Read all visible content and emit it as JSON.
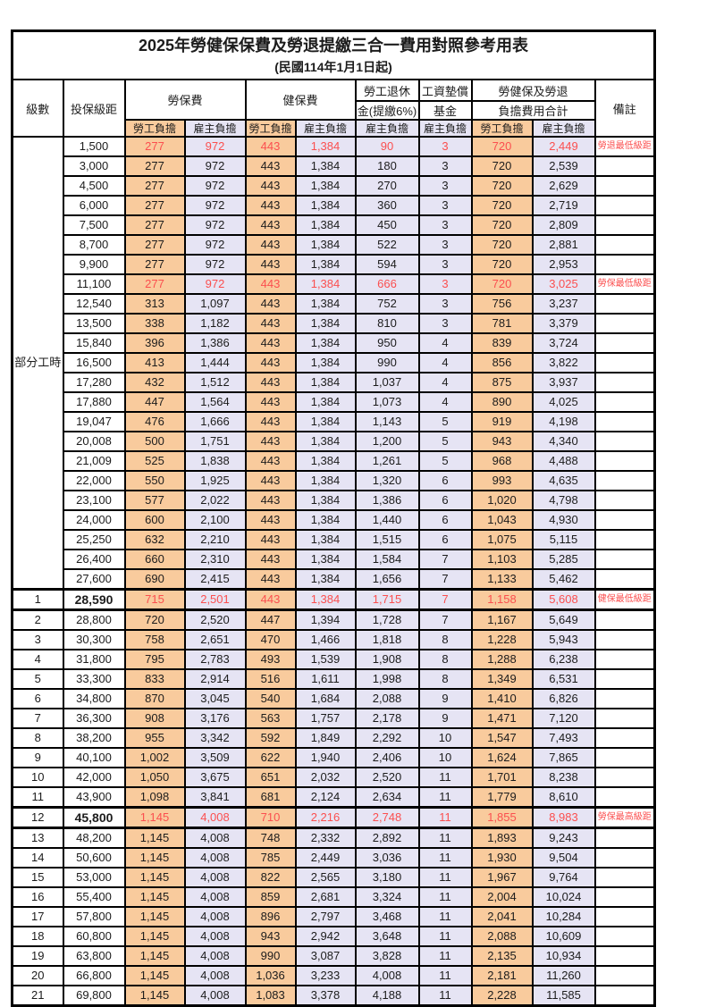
{
  "title": "2025年勞健保保費及勞退提繳三合一費用對照參考用表",
  "subtitle": "(民國114年1月1日起)",
  "colors": {
    "employee_column_bg": "#F9CB9D",
    "employer_column_bg": "#E6E4F4",
    "highlight_text": "#FB4F4F",
    "border": "#000000"
  },
  "header": {
    "level": "級數",
    "bracket": "投保級距",
    "labor_insurance": "勞保費",
    "health_insurance": "健保費",
    "pension_top": "勞工退休",
    "pension_bottom": "金(提繳6%)",
    "fund_top": "工資墊償",
    "fund_bottom": "基金",
    "total_top": "勞健保及勞退",
    "total_bottom": "負擔費用合計",
    "remark": "備註",
    "employee": "勞工負擔",
    "employer": "雇主負擔"
  },
  "part_time_label": "部分工時",
  "part_time_row_count": 23,
  "rows": [
    {
      "level": "",
      "bracket": "1,500",
      "cells": [
        "277",
        "972",
        "443",
        "1,384",
        "90",
        "3",
        "720",
        "2,449"
      ],
      "remark": "勞退最低級距",
      "red": true,
      "thick": false,
      "bold": false
    },
    {
      "level": "",
      "bracket": "3,000",
      "cells": [
        "277",
        "972",
        "443",
        "1,384",
        "180",
        "3",
        "720",
        "2,539"
      ],
      "remark": "",
      "red": false,
      "thick": false,
      "bold": false
    },
    {
      "level": "",
      "bracket": "4,500",
      "cells": [
        "277",
        "972",
        "443",
        "1,384",
        "270",
        "3",
        "720",
        "2,629"
      ],
      "remark": "",
      "red": false,
      "thick": false,
      "bold": false
    },
    {
      "level": "",
      "bracket": "6,000",
      "cells": [
        "277",
        "972",
        "443",
        "1,384",
        "360",
        "3",
        "720",
        "2,719"
      ],
      "remark": "",
      "red": false,
      "thick": false,
      "bold": false
    },
    {
      "level": "",
      "bracket": "7,500",
      "cells": [
        "277",
        "972",
        "443",
        "1,384",
        "450",
        "3",
        "720",
        "2,809"
      ],
      "remark": "",
      "red": false,
      "thick": false,
      "bold": false
    },
    {
      "level": "",
      "bracket": "8,700",
      "cells": [
        "277",
        "972",
        "443",
        "1,384",
        "522",
        "3",
        "720",
        "2,881"
      ],
      "remark": "",
      "red": false,
      "thick": false,
      "bold": false
    },
    {
      "level": "",
      "bracket": "9,900",
      "cells": [
        "277",
        "972",
        "443",
        "1,384",
        "594",
        "3",
        "720",
        "2,953"
      ],
      "remark": "",
      "red": false,
      "thick": false,
      "bold": false
    },
    {
      "level": "",
      "bracket": "11,100",
      "cells": [
        "277",
        "972",
        "443",
        "1,384",
        "666",
        "3",
        "720",
        "3,025"
      ],
      "remark": "勞保最低級距",
      "red": true,
      "thick": false,
      "bold": false
    },
    {
      "level": "",
      "bracket": "12,540",
      "cells": [
        "313",
        "1,097",
        "443",
        "1,384",
        "752",
        "3",
        "756",
        "3,237"
      ],
      "remark": "",
      "red": false,
      "thick": false,
      "bold": false
    },
    {
      "level": "",
      "bracket": "13,500",
      "cells": [
        "338",
        "1,182",
        "443",
        "1,384",
        "810",
        "3",
        "781",
        "3,379"
      ],
      "remark": "",
      "red": false,
      "thick": false,
      "bold": false
    },
    {
      "level": "",
      "bracket": "15,840",
      "cells": [
        "396",
        "1,386",
        "443",
        "1,384",
        "950",
        "4",
        "839",
        "3,724"
      ],
      "remark": "",
      "red": false,
      "thick": false,
      "bold": false
    },
    {
      "level": "",
      "bracket": "16,500",
      "cells": [
        "413",
        "1,444",
        "443",
        "1,384",
        "990",
        "4",
        "856",
        "3,822"
      ],
      "remark": "",
      "red": false,
      "thick": false,
      "bold": false
    },
    {
      "level": "",
      "bracket": "17,280",
      "cells": [
        "432",
        "1,512",
        "443",
        "1,384",
        "1,037",
        "4",
        "875",
        "3,937"
      ],
      "remark": "",
      "red": false,
      "thick": false,
      "bold": false
    },
    {
      "level": "",
      "bracket": "17,880",
      "cells": [
        "447",
        "1,564",
        "443",
        "1,384",
        "1,073",
        "4",
        "890",
        "4,025"
      ],
      "remark": "",
      "red": false,
      "thick": false,
      "bold": false
    },
    {
      "level": "",
      "bracket": "19,047",
      "cells": [
        "476",
        "1,666",
        "443",
        "1,384",
        "1,143",
        "5",
        "919",
        "4,198"
      ],
      "remark": "",
      "red": false,
      "thick": false,
      "bold": false
    },
    {
      "level": "",
      "bracket": "20,008",
      "cells": [
        "500",
        "1,751",
        "443",
        "1,384",
        "1,200",
        "5",
        "943",
        "4,340"
      ],
      "remark": "",
      "red": false,
      "thick": false,
      "bold": false
    },
    {
      "level": "",
      "bracket": "21,009",
      "cells": [
        "525",
        "1,838",
        "443",
        "1,384",
        "1,261",
        "5",
        "968",
        "4,488"
      ],
      "remark": "",
      "red": false,
      "thick": false,
      "bold": false
    },
    {
      "level": "",
      "bracket": "22,000",
      "cells": [
        "550",
        "1,925",
        "443",
        "1,384",
        "1,320",
        "6",
        "993",
        "4,635"
      ],
      "remark": "",
      "red": false,
      "thick": false,
      "bold": false
    },
    {
      "level": "",
      "bracket": "23,100",
      "cells": [
        "577",
        "2,022",
        "443",
        "1,384",
        "1,386",
        "6",
        "1,020",
        "4,798"
      ],
      "remark": "",
      "red": false,
      "thick": false,
      "bold": false
    },
    {
      "level": "",
      "bracket": "24,000",
      "cells": [
        "600",
        "2,100",
        "443",
        "1,384",
        "1,440",
        "6",
        "1,043",
        "4,930"
      ],
      "remark": "",
      "red": false,
      "thick": false,
      "bold": false
    },
    {
      "level": "",
      "bracket": "25,250",
      "cells": [
        "632",
        "2,210",
        "443",
        "1,384",
        "1,515",
        "6",
        "1,075",
        "5,115"
      ],
      "remark": "",
      "red": false,
      "thick": false,
      "bold": false
    },
    {
      "level": "",
      "bracket": "26,400",
      "cells": [
        "660",
        "2,310",
        "443",
        "1,384",
        "1,584",
        "7",
        "1,103",
        "5,285"
      ],
      "remark": "",
      "red": false,
      "thick": false,
      "bold": false
    },
    {
      "level": "",
      "bracket": "27,600",
      "cells": [
        "690",
        "2,415",
        "443",
        "1,384",
        "1,656",
        "7",
        "1,133",
        "5,462"
      ],
      "remark": "",
      "red": false,
      "thick": false,
      "bold": false
    },
    {
      "level": "1",
      "bracket": "28,590",
      "cells": [
        "715",
        "2,501",
        "443",
        "1,384",
        "1,715",
        "7",
        "1,158",
        "5,608"
      ],
      "remark": "健保最低級距",
      "red": true,
      "thick": true,
      "bold": true
    },
    {
      "level": "2",
      "bracket": "28,800",
      "cells": [
        "720",
        "2,520",
        "447",
        "1,394",
        "1,728",
        "7",
        "1,167",
        "5,649"
      ],
      "remark": "",
      "red": false,
      "thick": false,
      "bold": false
    },
    {
      "level": "3",
      "bracket": "30,300",
      "cells": [
        "758",
        "2,651",
        "470",
        "1,466",
        "1,818",
        "8",
        "1,228",
        "5,943"
      ],
      "remark": "",
      "red": false,
      "thick": false,
      "bold": false
    },
    {
      "level": "4",
      "bracket": "31,800",
      "cells": [
        "795",
        "2,783",
        "493",
        "1,539",
        "1,908",
        "8",
        "1,288",
        "6,238"
      ],
      "remark": "",
      "red": false,
      "thick": false,
      "bold": false
    },
    {
      "level": "5",
      "bracket": "33,300",
      "cells": [
        "833",
        "2,914",
        "516",
        "1,611",
        "1,998",
        "8",
        "1,349",
        "6,531"
      ],
      "remark": "",
      "red": false,
      "thick": false,
      "bold": false
    },
    {
      "level": "6",
      "bracket": "34,800",
      "cells": [
        "870",
        "3,045",
        "540",
        "1,684",
        "2,088",
        "9",
        "1,410",
        "6,826"
      ],
      "remark": "",
      "red": false,
      "thick": false,
      "bold": false
    },
    {
      "level": "7",
      "bracket": "36,300",
      "cells": [
        "908",
        "3,176",
        "563",
        "1,757",
        "2,178",
        "9",
        "1,471",
        "7,120"
      ],
      "remark": "",
      "red": false,
      "thick": false,
      "bold": false
    },
    {
      "level": "8",
      "bracket": "38,200",
      "cells": [
        "955",
        "3,342",
        "592",
        "1,849",
        "2,292",
        "10",
        "1,547",
        "7,493"
      ],
      "remark": "",
      "red": false,
      "thick": false,
      "bold": false
    },
    {
      "level": "9",
      "bracket": "40,100",
      "cells": [
        "1,002",
        "3,509",
        "622",
        "1,940",
        "2,406",
        "10",
        "1,624",
        "7,865"
      ],
      "remark": "",
      "red": false,
      "thick": false,
      "bold": false
    },
    {
      "level": "10",
      "bracket": "42,000",
      "cells": [
        "1,050",
        "3,675",
        "651",
        "2,032",
        "2,520",
        "11",
        "1,701",
        "8,238"
      ],
      "remark": "",
      "red": false,
      "thick": false,
      "bold": false
    },
    {
      "level": "11",
      "bracket": "43,900",
      "cells": [
        "1,098",
        "3,841",
        "681",
        "2,124",
        "2,634",
        "11",
        "1,779",
        "8,610"
      ],
      "remark": "",
      "red": false,
      "thick": false,
      "bold": false
    },
    {
      "level": "12",
      "bracket": "45,800",
      "cells": [
        "1,145",
        "4,008",
        "710",
        "2,216",
        "2,748",
        "11",
        "1,855",
        "8,983"
      ],
      "remark": "勞保最高級距",
      "red": true,
      "thick": true,
      "bold": true
    },
    {
      "level": "13",
      "bracket": "48,200",
      "cells": [
        "1,145",
        "4,008",
        "748",
        "2,332",
        "2,892",
        "11",
        "1,893",
        "9,243"
      ],
      "remark": "",
      "red": false,
      "thick": false,
      "bold": false
    },
    {
      "level": "14",
      "bracket": "50,600",
      "cells": [
        "1,145",
        "4,008",
        "785",
        "2,449",
        "3,036",
        "11",
        "1,930",
        "9,504"
      ],
      "remark": "",
      "red": false,
      "thick": false,
      "bold": false
    },
    {
      "level": "15",
      "bracket": "53,000",
      "cells": [
        "1,145",
        "4,008",
        "822",
        "2,565",
        "3,180",
        "11",
        "1,967",
        "9,764"
      ],
      "remark": "",
      "red": false,
      "thick": false,
      "bold": false
    },
    {
      "level": "16",
      "bracket": "55,400",
      "cells": [
        "1,145",
        "4,008",
        "859",
        "2,681",
        "3,324",
        "11",
        "2,004",
        "10,024"
      ],
      "remark": "",
      "red": false,
      "thick": false,
      "bold": false
    },
    {
      "level": "17",
      "bracket": "57,800",
      "cells": [
        "1,145",
        "4,008",
        "896",
        "2,797",
        "3,468",
        "11",
        "2,041",
        "10,284"
      ],
      "remark": "",
      "red": false,
      "thick": false,
      "bold": false
    },
    {
      "level": "18",
      "bracket": "60,800",
      "cells": [
        "1,145",
        "4,008",
        "943",
        "2,942",
        "3,648",
        "11",
        "2,088",
        "10,609"
      ],
      "remark": "",
      "red": false,
      "thick": false,
      "bold": false
    },
    {
      "level": "19",
      "bracket": "63,800",
      "cells": [
        "1,145",
        "4,008",
        "990",
        "3,087",
        "3,828",
        "11",
        "2,135",
        "10,934"
      ],
      "remark": "",
      "red": false,
      "thick": false,
      "bold": false
    },
    {
      "level": "20",
      "bracket": "66,800",
      "cells": [
        "1,145",
        "4,008",
        "1,036",
        "3,233",
        "4,008",
        "11",
        "2,181",
        "11,260"
      ],
      "remark": "",
      "red": false,
      "thick": false,
      "bold": false
    },
    {
      "level": "21",
      "bracket": "69,800",
      "cells": [
        "1,145",
        "4,008",
        "1,083",
        "3,378",
        "4,188",
        "11",
        "2,228",
        "11,585"
      ],
      "remark": "",
      "red": false,
      "thick": false,
      "bold": false
    }
  ],
  "value_column_kinds": [
    "emp",
    "er",
    "emp",
    "er",
    "er",
    "er",
    "emp",
    "er"
  ],
  "value_column_names": [
    "labor-insurance-employee",
    "labor-insurance-employer",
    "health-insurance-employee",
    "health-insurance-employer",
    "pension-employer",
    "wage-fund-employer",
    "total-employee",
    "total-employer"
  ]
}
